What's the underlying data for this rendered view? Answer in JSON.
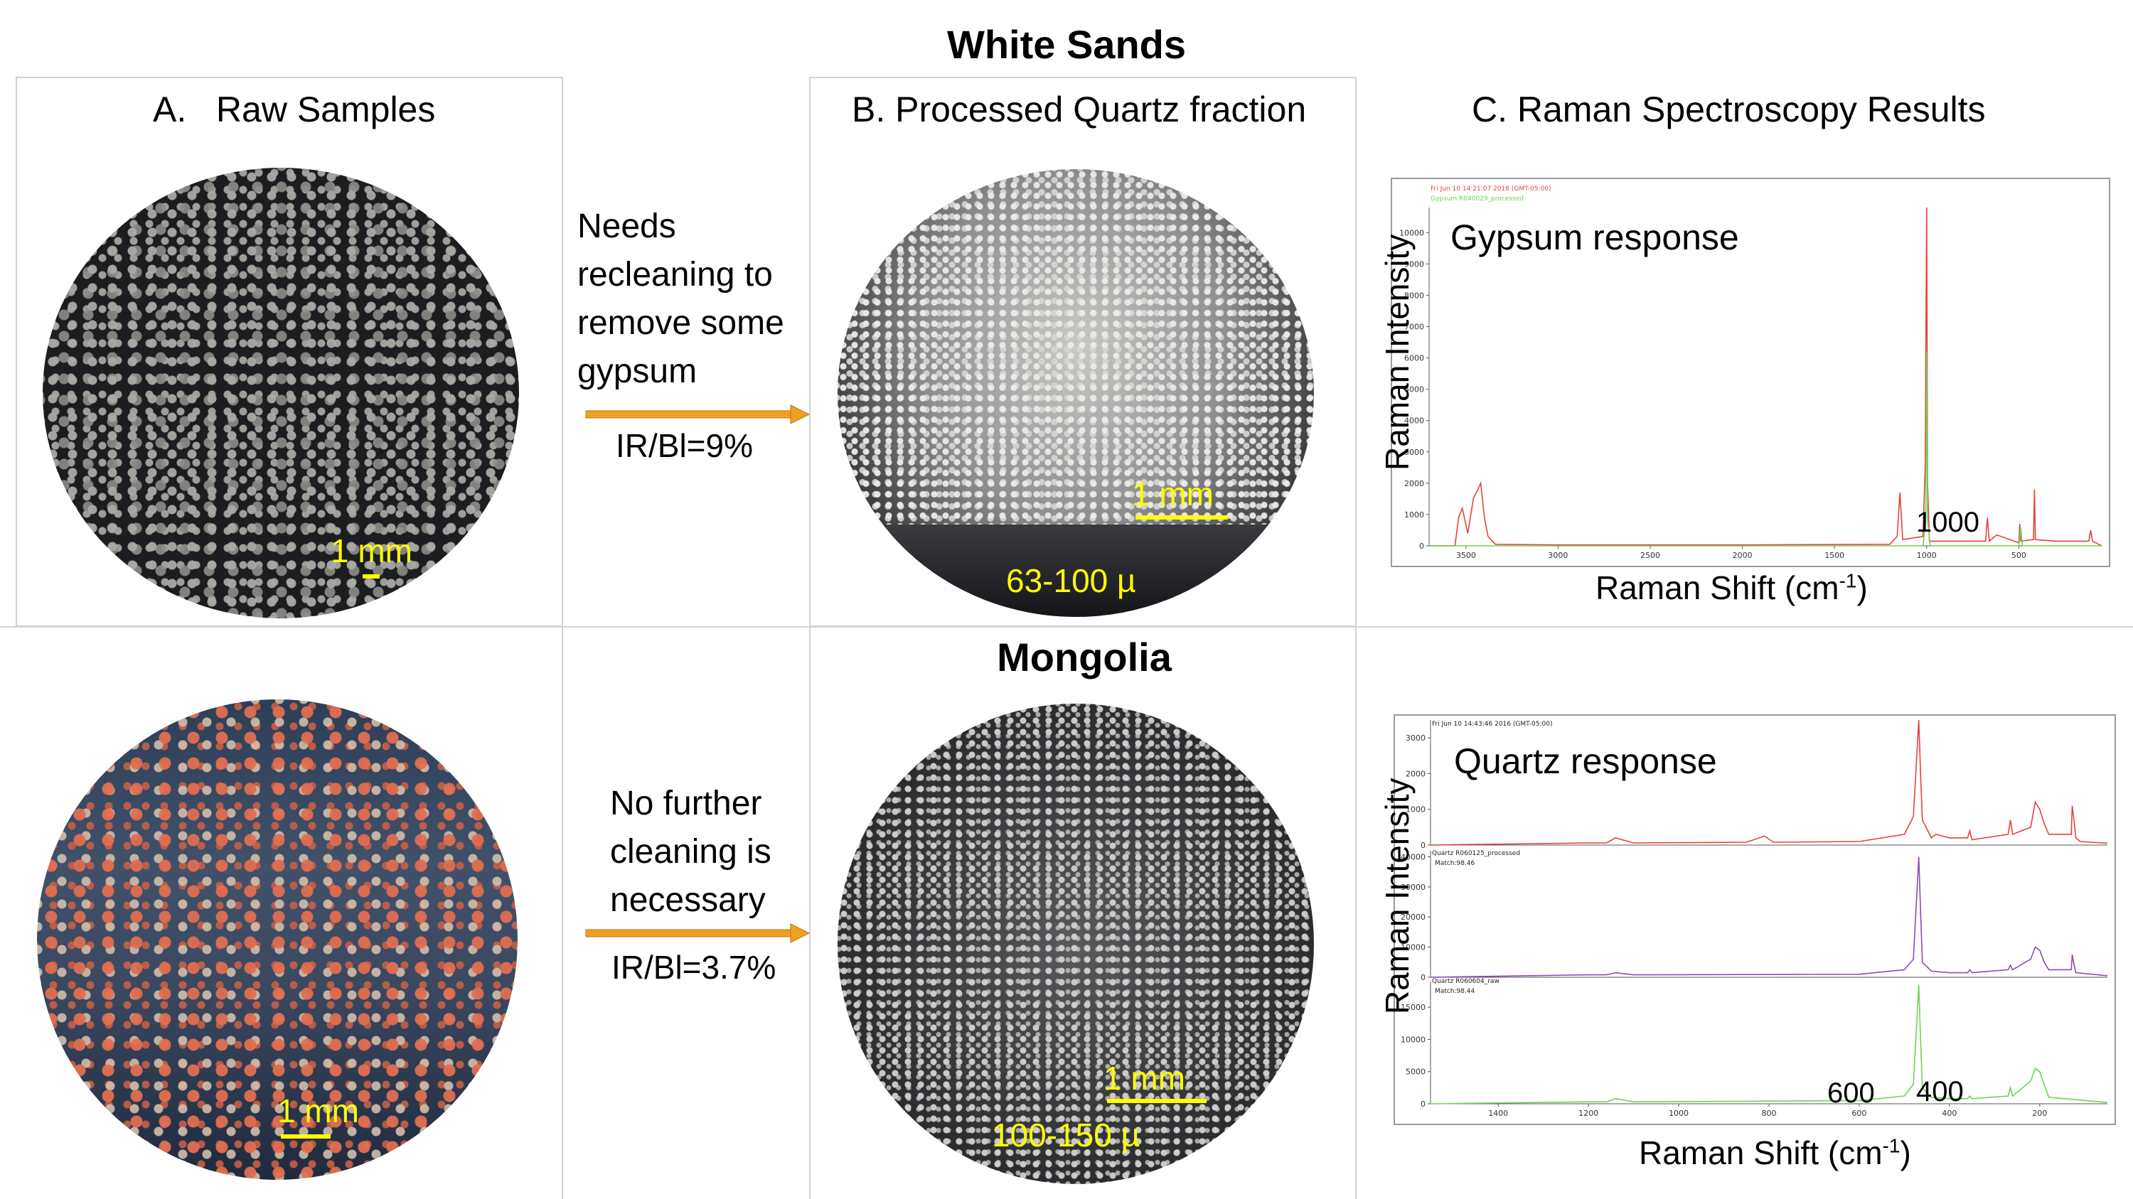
{
  "top_title": "White Sands",
  "mid_title": "Mongolia",
  "column_headers": {
    "a": "A.   Raw Samples",
    "b": "B. Processed Quartz fraction",
    "c": "C. Raman Spectroscopy Results"
  },
  "white_sands": {
    "note_lines": [
      "Needs",
      "recleaning to",
      "remove some",
      "gypsum"
    ],
    "ratio": "IR/Bl=9%",
    "raw_scale": "1 mm",
    "processed_scale": "1 mm",
    "processed_size": "63-100 µ"
  },
  "mongolia": {
    "note_lines": [
      "No further",
      "cleaning is",
      "necessary"
    ],
    "ratio": "IR/Bl=3.7%",
    "raw_scale": "1 mm",
    "processed_scale": "1 mm",
    "processed_size": "100-150 µ"
  },
  "gypsum_chart": {
    "label": "Gypsum response",
    "peak_label": "1000",
    "ylabel": "Raman Intensity",
    "xlabel_main": "Raman Shift (cm",
    "xlabel_sup": "-1",
    "xlabel_end": ")",
    "header_line1": "Fri Jun 10 14:21:07 2016 (GMT-05:00)",
    "header_line2": "Gypsum R040029_processed"
  },
  "quartz_chart": {
    "label": "Quartz response",
    "peak_label_1": "600",
    "peak_label_2": "400",
    "ylabel": "Raman Intensity",
    "xlabel_main": "Raman Shift (cm",
    "xlabel_sup": "-1",
    "xlabel_end": ")",
    "header_line1": "Fri Jun 10 14:43:46 2016 (GMT-05:00)",
    "header_line2": "Quartz R060125_processed",
    "header_line3": "Match:98.46",
    "header_line4": "Quartz R060604_raw",
    "header_line5": "Match:98.44"
  },
  "colors": {
    "scale_yellow": "#ffff00",
    "arrow_orange": "#f0a020",
    "spectrum_red": "#e8413b",
    "spectrum_purple": "#8e4ab3",
    "spectrum_green": "#6fd25a"
  },
  "chart_data": [
    {
      "type": "line",
      "xlim": [
        3700,
        50
      ],
      "ylim": [
        0,
        10800
      ],
      "x_ticks": [
        3500,
        3000,
        2500,
        2000,
        1500,
        1000,
        500
      ],
      "y_ticks": [
        0,
        1000,
        2000,
        3000,
        4000,
        5000,
        6000,
        7000,
        8000,
        9000,
        10000
      ],
      "series": [
        {
          "x": [
            3700,
            3560,
            3540,
            3520,
            3490,
            3460,
            3420,
            3400,
            3380,
            3340,
            3000,
            2000,
            1200,
            1160,
            1145,
            1130,
            1020,
            1008,
            1000,
            995,
            985,
            680,
            670,
            660,
            620,
            500,
            495,
            490,
            420,
            415,
            410,
            300,
            120,
            110,
            100,
            50
          ],
          "y": [
            0,
            0,
            900,
            1200,
            400,
            1500,
            2000,
            900,
            300,
            50,
            30,
            30,
            50,
            300,
            1700,
            200,
            300,
            2500,
            11000,
            2000,
            150,
            150,
            900,
            150,
            350,
            100,
            700,
            150,
            200,
            1800,
            200,
            150,
            150,
            500,
            150,
            0
          ]
        },
        {
          "x": [
            3700,
            1020,
            1005,
            1000,
            995,
            980,
            500,
            490,
            480,
            50
          ],
          "y": [
            0,
            0,
            800,
            6200,
            800,
            0,
            0,
            600,
            0,
            0
          ]
        }
      ]
    },
    {
      "type": "line",
      "xlim": [
        1550,
        50
      ],
      "x_ticks": [
        1400,
        1200,
        1000,
        800,
        600,
        400,
        200
      ],
      "panels": [
        {
          "ylim": [
            0,
            3500
          ],
          "y_ticks": [
            0,
            1000,
            2000,
            3000
          ],
          "x": [
            1550,
            1200,
            1160,
            1140,
            1100,
            850,
            810,
            790,
            600,
            500,
            480,
            468,
            464,
            460,
            440,
            430,
            400,
            360,
            355,
            350,
            270,
            265,
            260,
            220,
            210,
            200,
            190,
            180,
            130,
            128,
            125,
            120,
            110,
            50
          ],
          "y": [
            0,
            60,
            60,
            200,
            60,
            80,
            250,
            80,
            100,
            300,
            800,
            3500,
            2000,
            700,
            200,
            300,
            200,
            200,
            400,
            150,
            300,
            700,
            300,
            500,
            1200,
            1000,
            600,
            300,
            300,
            1100,
            800,
            200,
            100,
            50
          ]
        },
        {
          "ylim": [
            0,
            42000
          ],
          "y_ticks": [
            0,
            10000,
            20000,
            30000,
            40000
          ],
          "x": [
            1550,
            1200,
            1160,
            1140,
            1100,
            600,
            500,
            480,
            468,
            464,
            460,
            440,
            400,
            360,
            355,
            350,
            270,
            265,
            260,
            220,
            210,
            200,
            190,
            180,
            130,
            128,
            125,
            120,
            50
          ],
          "y": [
            0,
            800,
            800,
            1500,
            800,
            1000,
            2500,
            6000,
            40000,
            22000,
            5000,
            2000,
            1500,
            1500,
            2500,
            1500,
            2500,
            4000,
            2500,
            6000,
            10000,
            9000,
            5000,
            2500,
            2500,
            7500,
            5000,
            1500,
            500
          ]
        },
        {
          "ylim": [
            0,
            19000
          ],
          "y_ticks": [
            0,
            5000,
            10000,
            15000
          ],
          "x": [
            1550,
            1200,
            1160,
            1140,
            1100,
            600,
            500,
            480,
            468,
            464,
            460,
            440,
            400,
            360,
            355,
            350,
            270,
            265,
            260,
            220,
            210,
            200,
            190,
            180,
            50
          ],
          "y": [
            0,
            300,
            300,
            800,
            300,
            500,
            1200,
            3000,
            18500,
            10000,
            2500,
            1000,
            800,
            800,
            1200,
            800,
            1200,
            2500,
            1200,
            3500,
            5500,
            5000,
            3000,
            1000,
            200
          ]
        }
      ]
    }
  ]
}
